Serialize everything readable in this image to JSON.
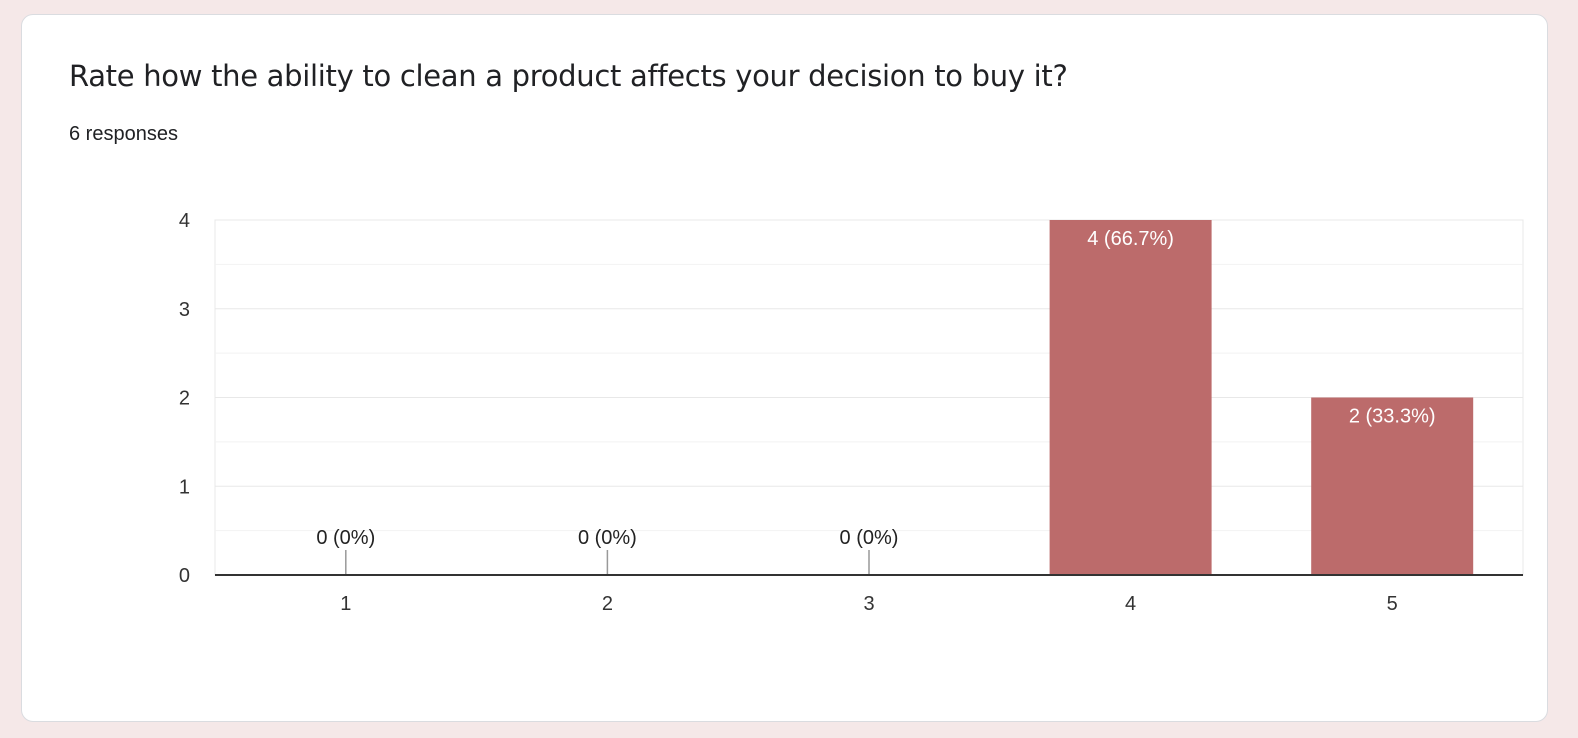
{
  "card": {
    "title": "Rate how the ability to clean a product affects your decision to buy it?",
    "responses": "6 responses"
  },
  "chart_data": {
    "type": "bar",
    "categories": [
      "1",
      "2",
      "3",
      "4",
      "5"
    ],
    "values": [
      0,
      0,
      0,
      4,
      2
    ],
    "data_labels": [
      "0 (0%)",
      "0 (0%)",
      "0 (0%)",
      "4 (66.7%)",
      "2 (33.3%)"
    ],
    "yticks": [
      0,
      1,
      2,
      3,
      4
    ],
    "ylim": [
      0,
      4
    ],
    "grid": true,
    "legend": "none",
    "bar_color": "#bc6b6b",
    "label_color_inside": "#ffffff",
    "label_color_outside": "#222222",
    "zero_marker_color": "#999999"
  }
}
